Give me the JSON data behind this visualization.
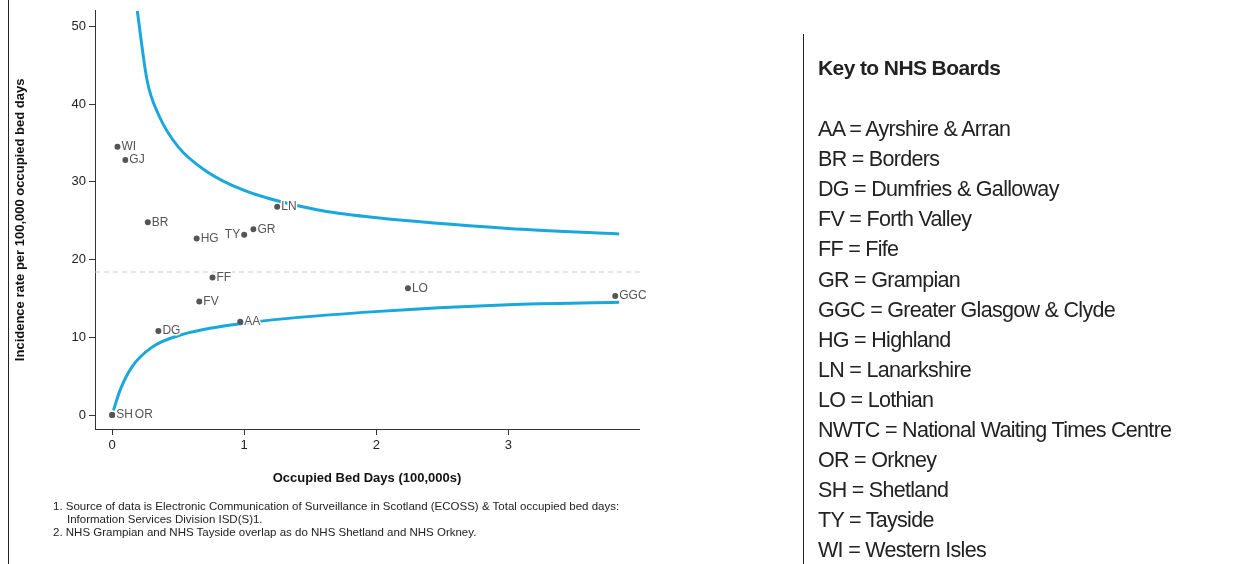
{
  "chart_data": [
    {
      "type": "scatter",
      "xlabel": "Occupied Bed Days (100,000s)",
      "ylabel": "Incidence rate per 100,000 occupied bed days",
      "xlim": [
        -0.13,
        3.99
      ],
      "ylim": [
        -1.8,
        52
      ],
      "xticks": [
        0,
        1,
        2,
        3
      ],
      "yticks": [
        0,
        10,
        20,
        30,
        40,
        50
      ],
      "legend": false,
      "series": [
        {
          "type": "scatter",
          "color": "#555555",
          "marker": "circle",
          "x": [
            0.04,
            0.1,
            0.27,
            0.64,
            1.0,
            1.07,
            1.25,
            0.76,
            0.66,
            0.35,
            0.97,
            2.24,
            3.81,
            0.0,
            0.0
          ],
          "values": [
            34.5,
            32.8,
            24.8,
            22.7,
            23.2,
            23.9,
            26.8,
            17.7,
            14.6,
            10.8,
            12.0,
            16.3,
            15.3,
            0,
            0
          ],
          "value_labels": [
            "WI",
            "GJ",
            "BR",
            "HG",
            "TY",
            "GR",
            "LN",
            "FF",
            "FV",
            "DG",
            "AA",
            "LO",
            "GGC",
            "SH",
            "OR"
          ]
        },
        {
          "type": "line",
          "color": "#1aa7dc",
          "x": [
            0.19,
            0.265,
            0.355,
            0.5,
            0.71,
            1.0,
            1.55,
            1.99,
            3.0,
            3.84
          ],
          "values": [
            52,
            43.0,
            38.5,
            34.5,
            31.4,
            28.9,
            26.4,
            25.4,
            24.0,
            23.3
          ]
        },
        {
          "type": "line",
          "color": "#1aa7dc",
          "x": [
            0.01,
            0.06,
            0.15,
            0.3,
            0.5,
            1.0,
            1.99,
            3.0,
            3.84
          ],
          "values": [
            0.6,
            3.2,
            6.2,
            8.7,
            10.2,
            11.8,
            13.3,
            14.2,
            14.5
          ]
        }
      ],
      "ref_lines": [
        {
          "axis": "y",
          "value": 18.4,
          "color": "#cccccc",
          "line_style": "dashed"
        }
      ],
      "annotations": [
        "1.  Source of data is Electronic Communication of Surveillance in Scotland (ECOSS) & Total occupied bed days: Information Services Division ISD(S)1.",
        "2.  NHS Grampian and NHS Tayside overlap as do NHS Shetland and NHS Orkney."
      ]
    },
    {
      "type": "other",
      "title": "Key to NHS Boards",
      "annotations": [
        "AA = Ayrshire & Arran",
        "BR = Borders",
        "DG = Dumfries & Galloway",
        "FV = Forth Valley",
        "FF = Fife",
        "GR = Grampian",
        "GGC = Greater Glasgow & Clyde",
        "HG = Highland",
        "LN = Lanarkshire",
        "LO = Lothian",
        "NWTC = National Waiting Times Centre",
        "OR = Orkney",
        "SH = Shetland",
        "TY = Tayside",
        "WI = Western Isles"
      ]
    }
  ]
}
